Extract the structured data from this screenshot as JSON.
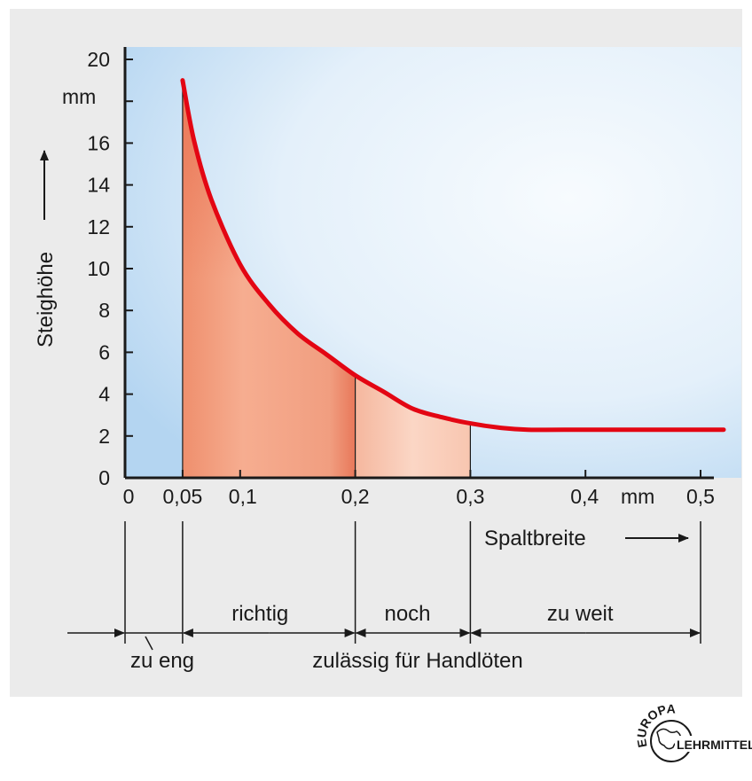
{
  "chart_data": {
    "type": "area",
    "xlabel": "Spaltbreite",
    "ylabel": "Steighöhe",
    "x_unit": "mm",
    "y_unit": "mm",
    "xlim": [
      0,
      0.5
    ],
    "ylim": [
      0,
      20
    ],
    "x_ticks": [
      {
        "value": 0,
        "label": "0"
      },
      {
        "value": 0.05,
        "label": "0,05"
      },
      {
        "value": 0.1,
        "label": "0,1"
      },
      {
        "value": 0.2,
        "label": "0,2"
      },
      {
        "value": 0.3,
        "label": "0,3"
      },
      {
        "value": 0.4,
        "label": "0,4"
      },
      {
        "value": 0.5,
        "label": "0,5"
      }
    ],
    "y_ticks": [
      {
        "value": 0,
        "label": "0"
      },
      {
        "value": 2,
        "label": "2"
      },
      {
        "value": 4,
        "label": "4"
      },
      {
        "value": 6,
        "label": "6"
      },
      {
        "value": 8,
        "label": "8"
      },
      {
        "value": 10,
        "label": "10"
      },
      {
        "value": 12,
        "label": "12"
      },
      {
        "value": 14,
        "label": "14"
      },
      {
        "value": 16,
        "label": "16"
      },
      {
        "value": 18,
        "label": ""
      },
      {
        "value": 20,
        "label": "20"
      }
    ],
    "series": [
      {
        "color": "#e30613",
        "x": [
          0.05,
          0.06,
          0.075,
          0.1,
          0.125,
          0.15,
          0.175,
          0.2,
          0.225,
          0.25,
          0.275,
          0.3,
          0.325,
          0.35,
          0.4,
          0.45,
          0.5,
          0.52
        ],
        "y": [
          19.0,
          16.1,
          13.3,
          10.2,
          8.3,
          6.9,
          5.9,
          4.9,
          4.1,
          3.3,
          2.9,
          2.6,
          2.4,
          2.3,
          2.3,
          2.3,
          2.3,
          2.3
        ]
      }
    ],
    "regions": [
      {
        "label": "zu eng",
        "from": 0,
        "to": 0.05,
        "color": ""
      },
      {
        "label": "richtig",
        "from": 0.05,
        "to": 0.2,
        "color": "#f19a78"
      },
      {
        "label": "noch",
        "from": 0.2,
        "to": 0.3,
        "color": "#f8c8b2"
      },
      {
        "label": "zu weit",
        "from": 0.3,
        "to": 0.5,
        "color": ""
      }
    ],
    "bracket_label": "zulässig für Handlöten",
    "grid": false,
    "colors": {
      "curve": "#e30613",
      "plot_bg_edge": "#bcdaf3",
      "plot_bg_center": "#f3f8fd",
      "panel_bg": "#ebebeb"
    }
  },
  "logo": {
    "top": "EUROPA",
    "bottom": "LEHRMITTEL"
  }
}
